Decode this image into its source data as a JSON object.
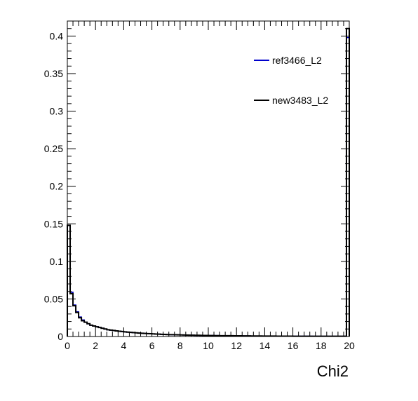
{
  "chart_data": {
    "type": "line",
    "title": "",
    "xlabel": "Chi2",
    "ylabel": "",
    "xlim": [
      0,
      20
    ],
    "ylim": [
      0,
      0.42
    ],
    "grid": false,
    "legend_position": "top-right",
    "x_ticks": [
      "0",
      "2",
      "4",
      "6",
      "8",
      "10",
      "12",
      "14",
      "16",
      "18",
      "20"
    ],
    "y_ticks": [
      "0",
      "0.05",
      "0.1",
      "0.15",
      "0.2",
      "0.25",
      "0.3",
      "0.35",
      "0.4"
    ],
    "bin_width": 0.2,
    "series": [
      {
        "name": "ref3466_L2",
        "color": "#0000cc",
        "values": [
          0.148,
          0.059,
          0.042,
          0.033,
          0.026,
          0.022,
          0.019,
          0.017,
          0.015,
          0.014,
          0.013,
          0.012,
          0.011,
          0.01,
          0.009,
          0.0085,
          0.008,
          0.0075,
          0.007,
          0.0066,
          0.0062,
          0.0058,
          0.0055,
          0.0052,
          0.0049,
          0.0046,
          0.0043,
          0.0041,
          0.0039,
          0.0037,
          0.0035,
          0.0033,
          0.0031,
          0.0029,
          0.0028,
          0.0026,
          0.0025,
          0.0024,
          0.0023,
          0.0022,
          0.0021,
          0.002,
          0.0019,
          0.0018,
          0.0017,
          0.0016,
          0.0016,
          0.0015,
          0.0014,
          0.0014,
          0.0013,
          0.0013,
          0.0012,
          0.0012,
          0.0011,
          0.0011,
          0.001,
          0.001,
          0.001,
          0.0009,
          0.0009,
          0.0009,
          0.0008,
          0.0008,
          0.0008,
          0.0007,
          0.0007,
          0.0007,
          0.0007,
          0.0006,
          0.0006,
          0.0006,
          0.0006,
          0.0006,
          0.0005,
          0.0005,
          0.0005,
          0.0005,
          0.0005,
          0.0005,
          0.0004,
          0.0004,
          0.0004,
          0.0004,
          0.0004,
          0.0004,
          0.0004,
          0.0003,
          0.0003,
          0.0003,
          0.0003,
          0.0003,
          0.0003,
          0.0003,
          0.0003,
          0.0003,
          0.0003,
          0.0003,
          0.0003,
          0.398
        ]
      },
      {
        "name": "new3483_L2",
        "color": "#000000",
        "values": [
          0.148,
          0.057,
          0.041,
          0.032,
          0.025,
          0.021,
          0.019,
          0.017,
          0.015,
          0.014,
          0.013,
          0.012,
          0.011,
          0.01,
          0.009,
          0.0085,
          0.008,
          0.0075,
          0.007,
          0.0066,
          0.0062,
          0.0058,
          0.0055,
          0.0052,
          0.0049,
          0.0046,
          0.0043,
          0.0041,
          0.0039,
          0.0037,
          0.0035,
          0.0033,
          0.0031,
          0.0029,
          0.0028,
          0.0026,
          0.0025,
          0.0024,
          0.0023,
          0.0022,
          0.0021,
          0.002,
          0.0019,
          0.0018,
          0.0017,
          0.0016,
          0.0016,
          0.0015,
          0.0014,
          0.0014,
          0.0013,
          0.0013,
          0.0012,
          0.0012,
          0.0011,
          0.0011,
          0.001,
          0.001,
          0.001,
          0.0009,
          0.0009,
          0.0009,
          0.0008,
          0.0008,
          0.0008,
          0.0007,
          0.0007,
          0.0007,
          0.0007,
          0.0006,
          0.0006,
          0.0006,
          0.0006,
          0.0006,
          0.0005,
          0.0005,
          0.0005,
          0.0005,
          0.0005,
          0.0005,
          0.0004,
          0.0004,
          0.0004,
          0.0004,
          0.0004,
          0.0004,
          0.0004,
          0.0003,
          0.0003,
          0.0003,
          0.0003,
          0.0003,
          0.0003,
          0.0003,
          0.0003,
          0.0003,
          0.0003,
          0.0003,
          0.0003,
          0.41
        ]
      }
    ]
  }
}
